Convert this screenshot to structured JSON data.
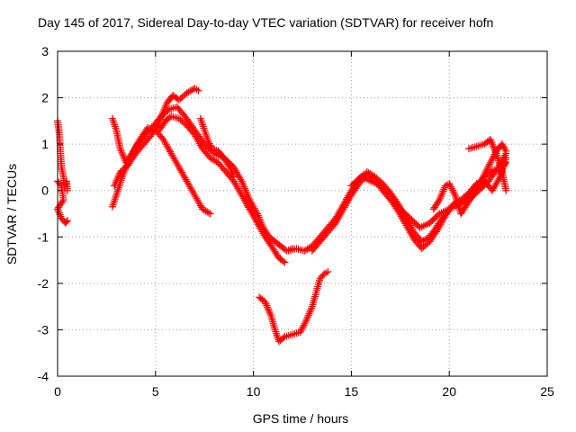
{
  "chart_data": {
    "type": "scatter",
    "title": "Day 145 of 2017, Sidereal Day-to-day VTEC variation (SDTVAR) for receiver hofn",
    "xlabel": "GPS time / hours",
    "ylabel": "SDTVAR / TECUs",
    "xlim": [
      0,
      25
    ],
    "ylim": [
      -4,
      3
    ],
    "xticks": [
      0,
      5,
      10,
      15,
      20,
      25
    ],
    "xtick_labels": [
      "0",
      "5",
      "10",
      "15",
      "20",
      "25"
    ],
    "yticks": [
      -4,
      -3,
      -2,
      -1,
      0,
      1,
      2,
      3
    ],
    "ytick_labels": [
      "-4",
      "-3",
      "-2",
      "-1",
      "0",
      "1",
      "2",
      "3"
    ],
    "grid": true,
    "marker": "+",
    "series": [
      {
        "name": "s1",
        "color": "#ff0000",
        "points": [
          [
            0.0,
            1.5
          ],
          [
            0.1,
            1.2
          ],
          [
            0.15,
            0.8
          ],
          [
            0.2,
            0.5
          ],
          [
            0.3,
            0.3
          ],
          [
            0.35,
            0.1
          ],
          [
            0.45,
            0.2
          ],
          [
            0.5,
            0.0
          ]
        ]
      },
      {
        "name": "s2",
        "color": "#ff0000",
        "points": [
          [
            0.0,
            0.2
          ],
          [
            0.2,
            0.1
          ],
          [
            0.3,
            -0.2
          ],
          [
            0.0,
            -0.4
          ],
          [
            0.2,
            -0.6
          ],
          [
            0.4,
            -0.7
          ],
          [
            0.5,
            -0.65
          ]
        ]
      },
      {
        "name": "s3",
        "color": "#ff0000",
        "points": [
          [
            2.8,
            1.55
          ],
          [
            3.0,
            1.3
          ],
          [
            3.2,
            0.9
          ],
          [
            3.5,
            0.6
          ],
          [
            3.8,
            0.8
          ],
          [
            4.2,
            1.1
          ],
          [
            4.6,
            1.35
          ],
          [
            5.0,
            1.3
          ],
          [
            5.4,
            1.1
          ],
          [
            5.8,
            0.8
          ],
          [
            6.2,
            0.5
          ],
          [
            6.6,
            0.2
          ],
          [
            7.0,
            -0.1
          ],
          [
            7.4,
            -0.4
          ],
          [
            7.8,
            -0.5
          ]
        ]
      },
      {
        "name": "s4",
        "color": "#ff0000",
        "points": [
          [
            2.8,
            -0.35
          ],
          [
            3.0,
            -0.1
          ],
          [
            3.3,
            0.3
          ],
          [
            3.7,
            0.7
          ],
          [
            4.1,
            1.0
          ],
          [
            4.5,
            1.2
          ],
          [
            4.9,
            1.4
          ],
          [
            5.3,
            1.6
          ],
          [
            5.7,
            1.75
          ],
          [
            6.1,
            1.8
          ],
          [
            6.5,
            1.6
          ],
          [
            7.0,
            1.3
          ],
          [
            7.5,
            1.0
          ],
          [
            8.0,
            0.8
          ],
          [
            8.5,
            0.7
          ],
          [
            9.0,
            0.5
          ],
          [
            9.4,
            0.2
          ],
          [
            9.8,
            -0.2
          ],
          [
            10.2,
            -0.5
          ],
          [
            10.5,
            -0.8
          ],
          [
            10.8,
            -1.0
          ],
          [
            11.1,
            -1.1
          ],
          [
            11.4,
            -1.2
          ],
          [
            11.7,
            -1.3
          ],
          [
            12.0,
            -1.25
          ]
        ]
      },
      {
        "name": "s5",
        "color": "#ff0000",
        "points": [
          [
            2.9,
            0.1
          ],
          [
            3.2,
            0.4
          ],
          [
            3.6,
            0.55
          ],
          [
            4.0,
            0.8
          ],
          [
            4.4,
            1.0
          ],
          [
            4.8,
            1.2
          ],
          [
            5.2,
            1.5
          ],
          [
            5.6,
            1.9
          ],
          [
            5.9,
            2.05
          ],
          [
            6.2,
            1.95
          ],
          [
            6.6,
            2.1
          ],
          [
            7.0,
            2.2
          ],
          [
            7.2,
            2.15
          ]
        ]
      },
      {
        "name": "s6",
        "color": "#ff0000",
        "points": [
          [
            5.2,
            1.3
          ],
          [
            5.5,
            1.5
          ],
          [
            5.8,
            1.6
          ],
          [
            6.2,
            1.55
          ],
          [
            6.6,
            1.4
          ],
          [
            7.0,
            1.2
          ],
          [
            7.4,
            0.9
          ],
          [
            7.8,
            0.7
          ],
          [
            8.2,
            0.6
          ],
          [
            8.6,
            0.4
          ],
          [
            9.0,
            0.2
          ],
          [
            9.4,
            -0.1
          ],
          [
            9.8,
            -0.4
          ],
          [
            10.2,
            -0.7
          ],
          [
            10.6,
            -1.0
          ],
          [
            11.0,
            -1.25
          ],
          [
            11.3,
            -1.45
          ],
          [
            11.6,
            -1.55
          ]
        ]
      },
      {
        "name": "s7",
        "color": "#ff0000",
        "points": [
          [
            7.3,
            1.55
          ],
          [
            7.5,
            1.3
          ],
          [
            7.7,
            1.05
          ],
          [
            7.9,
            0.9
          ],
          [
            8.2,
            0.85
          ],
          [
            8.5,
            0.7
          ],
          [
            8.8,
            0.5
          ],
          [
            9.0,
            0.3
          ]
        ]
      },
      {
        "name": "s8",
        "color": "#ff0000",
        "points": [
          [
            10.3,
            -2.3
          ],
          [
            10.6,
            -2.4
          ],
          [
            10.9,
            -2.7
          ],
          [
            11.1,
            -3.0
          ],
          [
            11.3,
            -3.25
          ],
          [
            11.6,
            -3.15
          ],
          [
            12.0,
            -3.1
          ],
          [
            12.4,
            -3.05
          ],
          [
            12.7,
            -2.8
          ],
          [
            13.0,
            -2.5
          ],
          [
            13.2,
            -2.2
          ],
          [
            13.4,
            -1.9
          ],
          [
            13.6,
            -1.8
          ],
          [
            13.8,
            -1.75
          ]
        ]
      },
      {
        "name": "s9",
        "color": "#ff0000",
        "points": [
          [
            11.8,
            -1.3
          ],
          [
            12.2,
            -1.25
          ],
          [
            12.6,
            -1.3
          ],
          [
            13.0,
            -1.2
          ],
          [
            13.4,
            -1.0
          ],
          [
            13.8,
            -0.8
          ],
          [
            14.2,
            -0.6
          ],
          [
            14.6,
            -0.3
          ],
          [
            15.0,
            0.0
          ],
          [
            15.4,
            0.25
          ],
          [
            15.8,
            0.4
          ],
          [
            16.2,
            0.3
          ],
          [
            16.6,
            0.15
          ],
          [
            17.0,
            -0.05
          ],
          [
            17.4,
            -0.3
          ],
          [
            17.8,
            -0.6
          ],
          [
            18.2,
            -0.9
          ],
          [
            18.6,
            -1.1
          ],
          [
            19.0,
            -1.0
          ],
          [
            19.4,
            -0.75
          ],
          [
            19.8,
            -0.5
          ],
          [
            20.2,
            -0.3
          ],
          [
            20.6,
            -0.25
          ],
          [
            21.0,
            -0.1
          ],
          [
            21.4,
            0.1
          ],
          [
            21.8,
            0.3
          ],
          [
            22.2,
            0.45
          ],
          [
            22.6,
            0.4
          ],
          [
            22.9,
            0.6
          ]
        ]
      },
      {
        "name": "s10",
        "color": "#ff0000",
        "points": [
          [
            13.0,
            -1.3
          ],
          [
            13.4,
            -1.1
          ],
          [
            13.8,
            -0.9
          ],
          [
            14.2,
            -0.7
          ],
          [
            14.6,
            -0.4
          ],
          [
            15.0,
            -0.1
          ],
          [
            15.4,
            0.15
          ],
          [
            15.8,
            0.35
          ],
          [
            16.2,
            0.25
          ],
          [
            16.6,
            0.0
          ],
          [
            17.0,
            -0.2
          ],
          [
            17.4,
            -0.45
          ],
          [
            17.8,
            -0.75
          ],
          [
            18.2,
            -1.05
          ],
          [
            18.6,
            -1.25
          ],
          [
            19.0,
            -1.1
          ],
          [
            19.4,
            -0.85
          ],
          [
            19.8,
            -0.55
          ],
          [
            20.2,
            -0.3
          ],
          [
            20.6,
            -0.2
          ],
          [
            21.0,
            -0.05
          ],
          [
            21.4,
            0.15
          ],
          [
            21.8,
            0.2
          ],
          [
            22.2,
            0.0
          ],
          [
            22.6,
            0.3
          ],
          [
            22.9,
            0.7
          ]
        ]
      },
      {
        "name": "s11",
        "color": "#ff0000",
        "points": [
          [
            15.0,
            0.1
          ],
          [
            15.5,
            0.3
          ],
          [
            16.0,
            0.2
          ],
          [
            16.5,
            0.1
          ],
          [
            17.0,
            -0.1
          ],
          [
            17.5,
            -0.4
          ],
          [
            18.0,
            -0.6
          ],
          [
            18.5,
            -0.8
          ],
          [
            19.0,
            -0.7
          ],
          [
            19.5,
            -0.5
          ],
          [
            20.0,
            -0.4
          ],
          [
            20.5,
            -0.3
          ],
          [
            21.0,
            -0.2
          ],
          [
            21.5,
            0.0
          ],
          [
            22.0,
            0.2
          ],
          [
            22.5,
            0.5
          ],
          [
            22.9,
            0.8
          ]
        ]
      },
      {
        "name": "s12",
        "color": "#ff0000",
        "points": [
          [
            19.2,
            -0.4
          ],
          [
            19.5,
            -0.2
          ],
          [
            19.8,
            0.1
          ],
          [
            20.0,
            0.15
          ],
          [
            20.3,
            -0.1
          ],
          [
            20.6,
            -0.5
          ],
          [
            20.9,
            -0.3
          ],
          [
            21.2,
            -0.1
          ],
          [
            21.5,
            0.1
          ],
          [
            21.8,
            0.35
          ],
          [
            22.1,
            0.6
          ],
          [
            22.4,
            0.85
          ],
          [
            22.7,
            1.0
          ],
          [
            22.9,
            0.85
          ]
        ]
      },
      {
        "name": "s13",
        "color": "#ff0000",
        "points": [
          [
            21.0,
            0.9
          ],
          [
            21.4,
            0.95
          ],
          [
            21.8,
            1.0
          ],
          [
            22.1,
            1.1
          ],
          [
            22.4,
            0.8
          ],
          [
            22.7,
            0.4
          ],
          [
            22.9,
            0.0
          ]
        ]
      }
    ]
  }
}
